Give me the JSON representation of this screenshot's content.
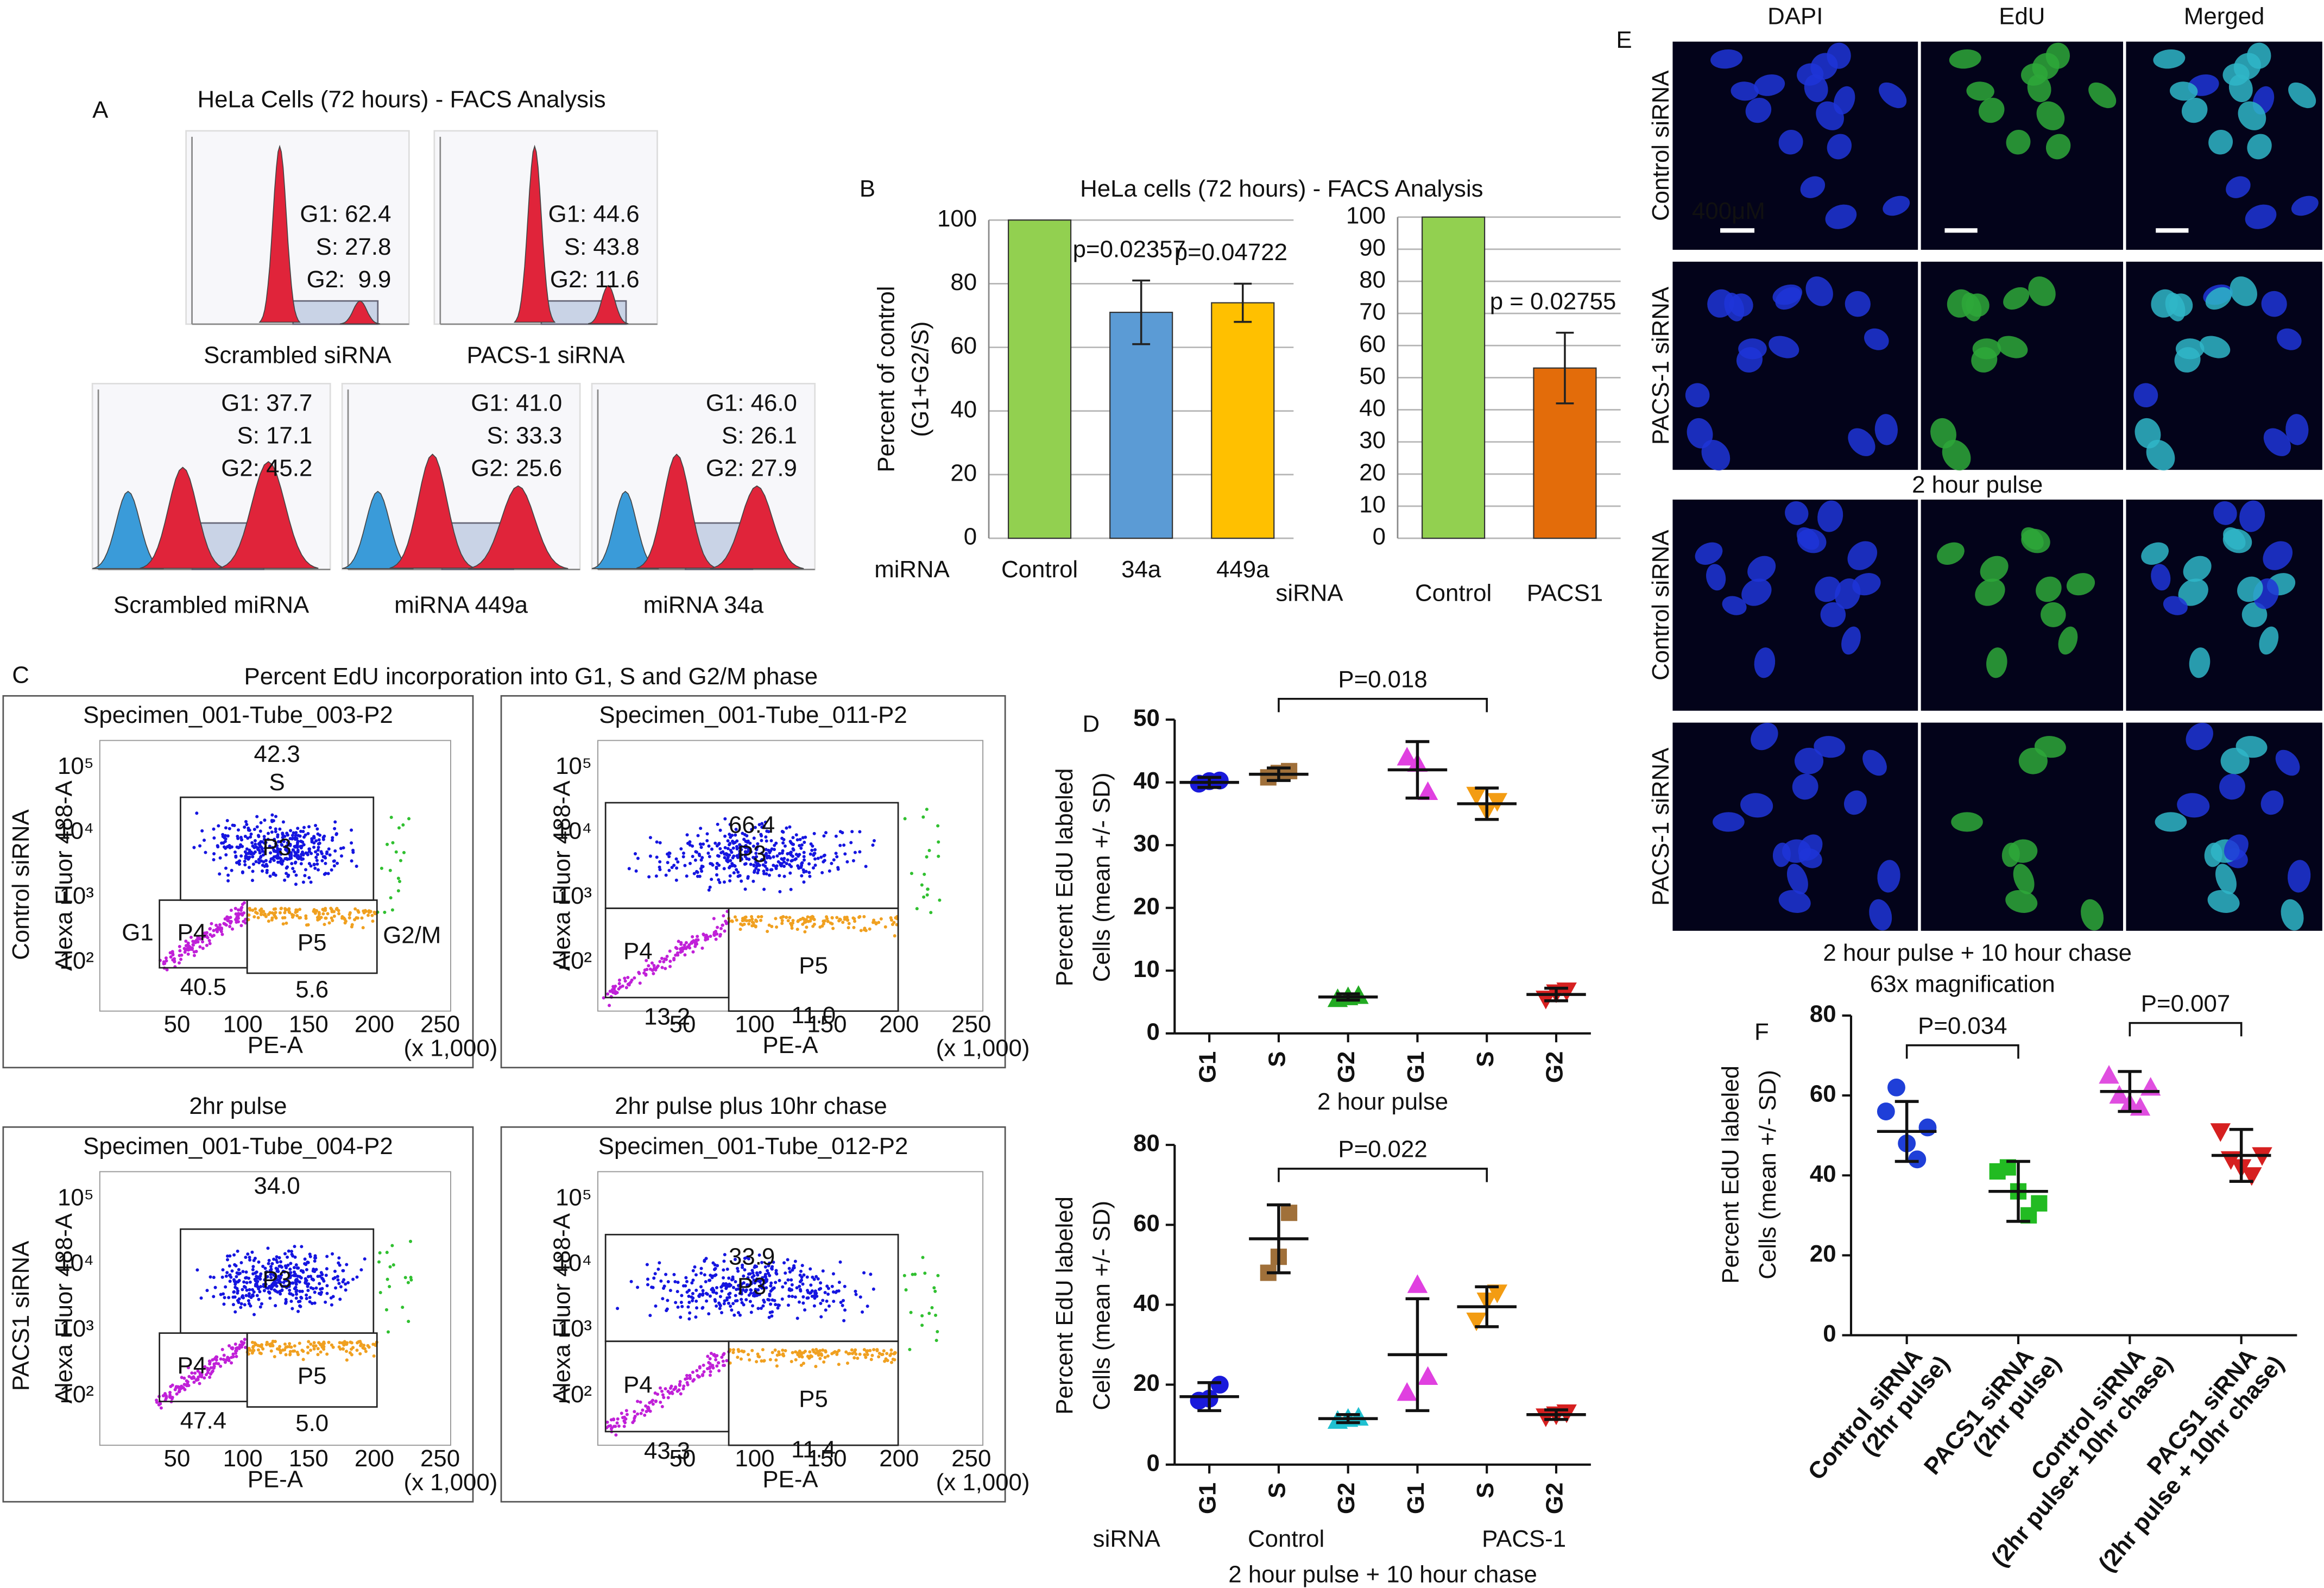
{
  "panel_a": {
    "label": "A",
    "title": "HeLa Cells (72 hours) - FACS Analysis",
    "plots": [
      {
        "caption": "Scrambled siRNA",
        "stats": [
          "G1: 62.4",
          "S: 27.8",
          "G2:  9.9"
        ]
      },
      {
        "caption": "PACS-1 siRNA",
        "stats": [
          "G1: 44.6",
          "S: 43.8",
          "G2: 11.6"
        ]
      },
      {
        "caption": "Scrambled miRNA",
        "stats": [
          "G1: 37.7",
          "S: 17.1",
          "G2: 45.2"
        ]
      },
      {
        "caption": "miRNA 449a",
        "stats": [
          "G1: 41.0",
          "S: 33.3",
          "G2: 25.6"
        ]
      },
      {
        "caption": "miRNA 34a",
        "stats": [
          "G1: 46.0",
          "S: 26.1",
          "G2: 27.9"
        ]
      }
    ]
  },
  "panel_b": {
    "label": "B",
    "title": "HeLa cells (72 hours) - FACS Analysis",
    "y_label": [
      "Percent of control",
      "(G1+G2/S)"
    ]
  },
  "panel_c": {
    "label": "C",
    "title": "Percent EdU incorporation into G1, S and G2/M phase",
    "row_labels": [
      "Control siRNA",
      "PACS1 siRNA"
    ],
    "column_labels": [
      "2hr pulse",
      "2hr pulse plus 10hr chase"
    ],
    "x_label": "PE-A",
    "y_label": "Alexa Fluor 488-A",
    "x_unit": "(x 1,000)",
    "x_ticks": [
      "50",
      "100",
      "150",
      "200",
      "250"
    ],
    "y_ticks": [
      "10²",
      "10³",
      "10⁴",
      "10⁵"
    ],
    "gates": [
      "P3",
      "P4",
      "P5"
    ],
    "plots": [
      {
        "header": "Specimen_001-Tube_003-P2",
        "s_value": "42.3",
        "g1_value": "40.5",
        "g2_value": "5.6",
        "s_label": "S",
        "g1_label": "G1",
        "g2_label": "G2/M"
      },
      {
        "header": "Specimen_001-Tube_011-P2",
        "s_value": "66.4",
        "g1_value": "13.2",
        "g2_value": "11.0"
      },
      {
        "header": "Specimen_001-Tube_004-P2",
        "s_value": "34.0",
        "g1_value": "47.4",
        "g2_value": "5.0"
      },
      {
        "header": "Specimen_001-Tube_012-P2",
        "s_value": "33.9",
        "g1_value": "43.3",
        "g2_value": "11.4"
      }
    ]
  },
  "panel_d": {
    "label": "D",
    "footer": {
      "prefix": "siRNA",
      "groups": [
        "Control",
        "PACS-1"
      ]
    }
  },
  "panel_e": {
    "label": "E",
    "columns": [
      "DAPI",
      "EdU",
      "Merged"
    ],
    "row_labels": [
      "Control siRNA",
      "PACS-1 siRNA",
      "Control siRNA",
      "PACS-1 siRNA"
    ],
    "captions": [
      "2 hour pulse",
      "2 hour pulse + 10 hour chase",
      "63x magnification"
    ],
    "scale": "400μM"
  },
  "panel_f": {
    "label": "F"
  },
  "chart_data": [
    {
      "type": "bar",
      "categories": [
        "Control",
        "34a",
        "449a"
      ],
      "values": [
        100,
        71,
        74
      ],
      "errors": [
        null,
        10,
        6
      ],
      "colors": [
        "#92d050",
        "#5b9bd5",
        "#ffc000"
      ],
      "ylim": [
        0,
        100
      ],
      "yticks": [
        0,
        20,
        40,
        60,
        80,
        100
      ],
      "grid": true,
      "x_prefix": "miRNA",
      "annotations": [
        "p=0.02357",
        "p=0.04722"
      ]
    },
    {
      "type": "bar",
      "categories": [
        "Control",
        "PACS1"
      ],
      "values": [
        100,
        53
      ],
      "errors": [
        null,
        11
      ],
      "colors": [
        "#92d050",
        "#e36c0a"
      ],
      "ylim": [
        0,
        100
      ],
      "yticks": [
        0,
        10,
        20,
        30,
        40,
        50,
        60,
        70,
        80,
        90,
        100
      ],
      "grid": true,
      "x_prefix": "siRNA",
      "annotations": [
        "p = 0.02755"
      ]
    },
    {
      "type": "dot",
      "categories": [
        "G1",
        "S",
        "G2",
        "G1",
        "S",
        "G2"
      ],
      "values": [
        40,
        41.3,
        5.8,
        42,
        36.6,
        6.2
      ],
      "errors": [
        0.8,
        1,
        0.5,
        4.5,
        2.5,
        1
      ],
      "points": [
        [
          39.8,
          40.2,
          40.3
        ],
        [
          40.8,
          41.5,
          41.8
        ],
        [
          5.5,
          5.8,
          6.0
        ],
        [
          44,
          43,
          38.5
        ],
        [
          38,
          35.5,
          37
        ],
        [
          5.5,
          6.5,
          6.8
        ]
      ],
      "colors": [
        "#1a1adb",
        "#a0703a",
        "#22aa22",
        "#e040e0",
        "#f39c12",
        "#d62020"
      ],
      "markers": [
        "circle",
        "square",
        "triangle",
        "triangle",
        "triangle-down",
        "triangle-down"
      ],
      "ylim": [
        0,
        50
      ],
      "yticks": [
        0,
        10,
        20,
        30,
        40,
        50
      ],
      "y_label": [
        "Percent EdU labeled",
        "Cells (mean +/- SD)"
      ],
      "x_title": "2 hour pulse",
      "brackets": [
        "P=0.018"
      ]
    },
    {
      "type": "dot",
      "categories": [
        "G1",
        "S",
        "G2",
        "G1",
        "S",
        "G2"
      ],
      "values": [
        17,
        56.5,
        11.5,
        27.5,
        39.5,
        12.5
      ],
      "errors": [
        3.5,
        8.5,
        1,
        14,
        5,
        1.2
      ],
      "points": [
        [
          16,
          16.5,
          20
        ],
        [
          48,
          52,
          63
        ],
        [
          11,
          11.5,
          11.8
        ],
        [
          18,
          45,
          22
        ],
        [
          36,
          41,
          43
        ],
        [
          12,
          12.5,
          13
        ]
      ],
      "colors": [
        "#1a1adb",
        "#a0703a",
        "#20c0d0",
        "#e040e0",
        "#f39c12",
        "#d62020"
      ],
      "markers": [
        "circle",
        "square",
        "triangle",
        "triangle",
        "triangle-down",
        "triangle-down"
      ],
      "ylim": [
        0,
        80
      ],
      "yticks": [
        0,
        20,
        40,
        60,
        80
      ],
      "y_label": [
        "Percent EdU labeled",
        "Cells (mean +/- SD)"
      ],
      "x_title": "2 hour pulse + 10 hour chase",
      "brackets": [
        "P=0.022"
      ]
    },
    {
      "type": "dot",
      "categories": [
        [
          "Control siRNA",
          "(2hr pulse)"
        ],
        [
          "PACS1 siRNA",
          "(2hr pulse)"
        ],
        [
          "Control siRNA",
          "(2hr pulse+ 10hr chase)"
        ],
        [
          "PACS1 siRNA",
          "(2hr pulse + 10hr chase)"
        ]
      ],
      "values": [
        51,
        36,
        61,
        45
      ],
      "errors": [
        7.5,
        7.5,
        5,
        6.5
      ],
      "points": [
        [
          56,
          62,
          48,
          44,
          52
        ],
        [
          41,
          42,
          36,
          30,
          33
        ],
        [
          65,
          60,
          58,
          57,
          62
        ],
        [
          51,
          44,
          42,
          40,
          45
        ]
      ],
      "colors": [
        "#1f3fd8",
        "#22bb22",
        "#e04ee0",
        "#d62020"
      ],
      "markers": [
        "circle",
        "square",
        "triangle",
        "triangle-down"
      ],
      "ylim": [
        0,
        80
      ],
      "yticks": [
        0,
        20,
        40,
        60,
        80
      ],
      "y_label": [
        "Percent EdU labeled",
        "Cells (mean +/- SD)"
      ],
      "brackets": [
        "P=0.034",
        "P=0.007"
      ]
    }
  ]
}
